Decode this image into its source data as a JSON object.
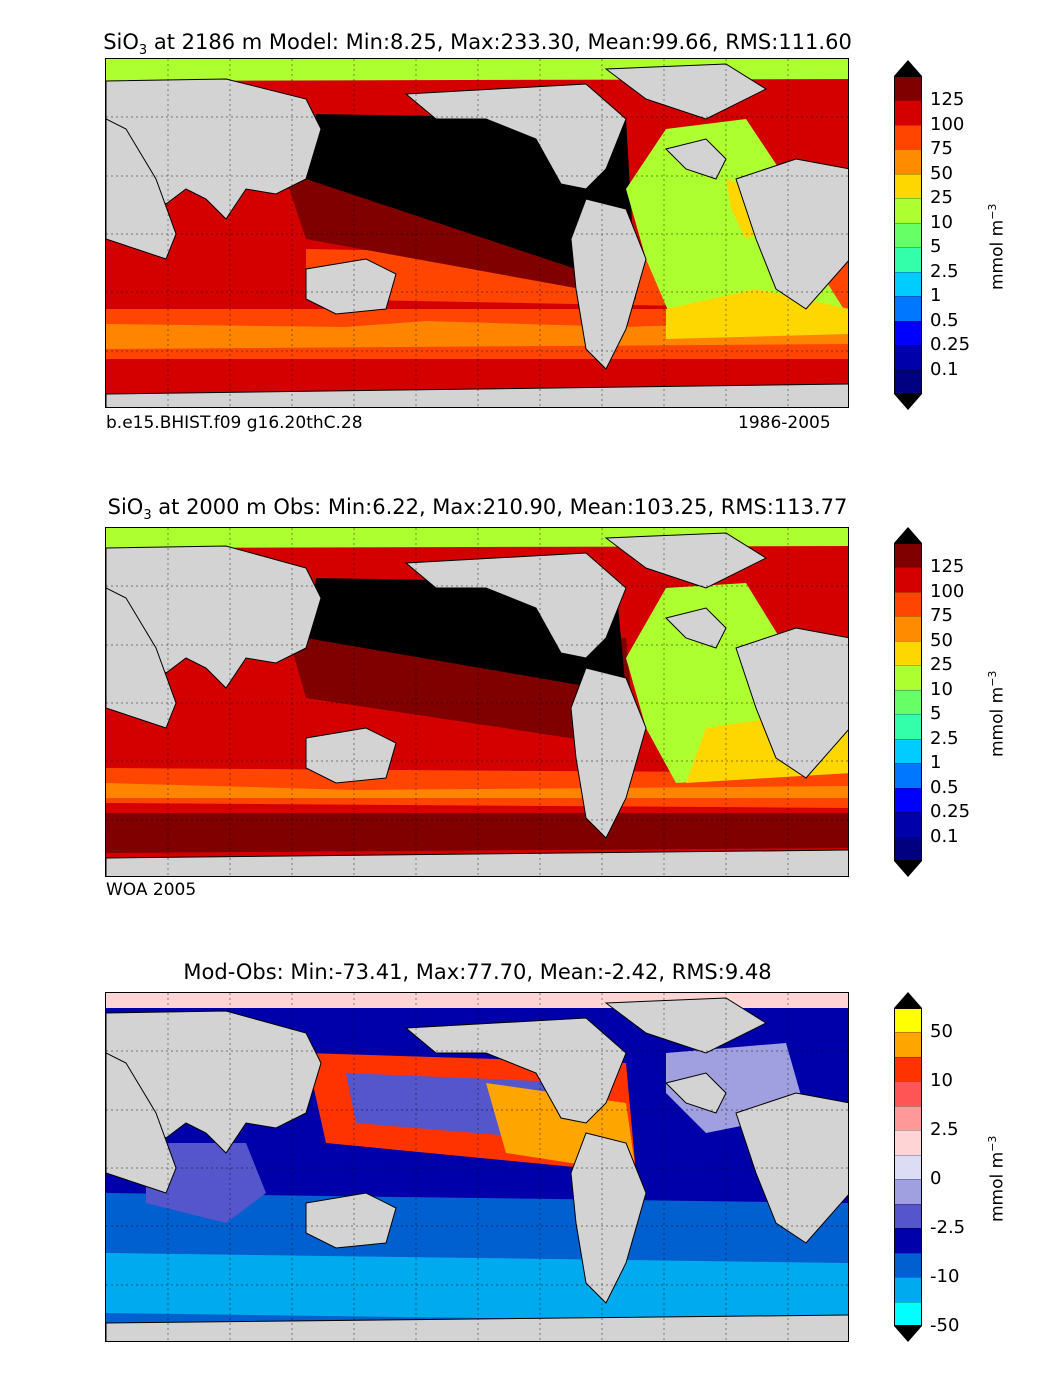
{
  "panels": [
    {
      "title_prefix": "SiO",
      "title_sub": "3",
      "title_rest": " at 2186 m Model: Min:8.25, Max:233.30, Mean:99.66, RMS:111.60",
      "footer_left": "b.e15.BHIST.f09 g16.20thC.28",
      "footer_right": "1986-2005",
      "colorbar": {
        "labels": [
          "125",
          "100",
          "75",
          "50",
          "25",
          "10",
          "5",
          "2.5",
          "1",
          "0.5",
          "0.25",
          "0.1"
        ],
        "colors": [
          "#800000",
          "#d40000",
          "#ff4500",
          "#ff8c00",
          "#ffd700",
          "#adff2f",
          "#66ff66",
          "#33ffaa",
          "#00ccff",
          "#0077ff",
          "#0000ff",
          "#0000aa",
          "#000080"
        ],
        "top_color": "#000000",
        "bottom_color": "#000000",
        "unit": "mmol m",
        "unit_sup": "−3"
      }
    },
    {
      "title_prefix": "SiO",
      "title_sub": "3",
      "title_rest": " at 2000 m Obs: Min:6.22, Max:210.90, Mean:103.25, RMS:113.77",
      "footer_left": "WOA 2005",
      "footer_right": "",
      "colorbar": {
        "labels": [
          "125",
          "100",
          "75",
          "50",
          "25",
          "10",
          "5",
          "2.5",
          "1",
          "0.5",
          "0.25",
          "0.1"
        ],
        "colors": [
          "#800000",
          "#d40000",
          "#ff4500",
          "#ff8c00",
          "#ffd700",
          "#adff2f",
          "#66ff66",
          "#33ffaa",
          "#00ccff",
          "#0077ff",
          "#0000ff",
          "#0000aa",
          "#000080"
        ],
        "top_color": "#000000",
        "bottom_color": "#000000",
        "unit": "mmol m",
        "unit_sup": "−3"
      }
    },
    {
      "title_prefix": "Mod-Obs: Min:-73.41, Max:77.70, Mean:-2.42, RMS:9.48",
      "title_sub": "",
      "title_rest": "",
      "footer_left": "",
      "footer_right": "",
      "colorbar": {
        "labels": [
          "50",
          "",
          "10",
          "",
          "2.5",
          "",
          "0",
          "",
          "-2.5",
          "",
          "-10",
          "",
          "-50"
        ],
        "colors": [
          "#ffff00",
          "#ffa500",
          "#ff3300",
          "#ff5555",
          "#ff9999",
          "#ffd4d4",
          "#dcdcf5",
          "#a0a0e0",
          "#5555cc",
          "#0000aa",
          "#0060d0",
          "#00aaee",
          "#00ffff"
        ],
        "top_color": "#000000",
        "bottom_color": "#000000",
        "unit": "mmol m",
        "unit_sup": "−3"
      }
    }
  ]
}
